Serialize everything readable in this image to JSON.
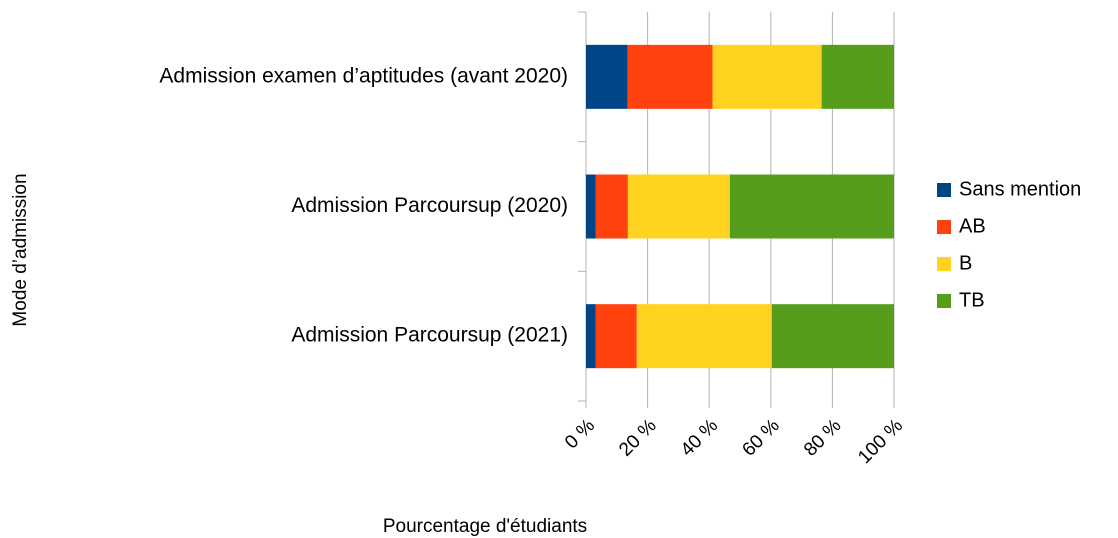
{
  "chart_data": {
    "type": "stacked-barh",
    "categories": [
      "Admission examen d’aptitudes (avant 2020)",
      "Admission Parcoursup (2020)",
      "Admission Parcoursup (2021)"
    ],
    "series": [
      {
        "name": "Sans mention",
        "color": "#004586",
        "values": [
          13.5,
          3.2,
          3.2
        ]
      },
      {
        "name": "AB",
        "color": "#ff420e",
        "values": [
          27.6,
          10.4,
          13.3
        ]
      },
      {
        "name": "B",
        "color": "#ffd320",
        "values": [
          35.4,
          33.1,
          43.8
        ]
      },
      {
        "name": "TB",
        "color": "#579d1c",
        "values": [
          23.5,
          53.3,
          39.7
        ]
      }
    ],
    "xlim": [
      0,
      100
    ],
    "xticks": [
      {
        "value": 0,
        "label": "0 %"
      },
      {
        "value": 20,
        "label": "20 %"
      },
      {
        "value": 40,
        "label": "40 %"
      },
      {
        "value": 60,
        "label": "60 %"
      },
      {
        "value": 80,
        "label": "80 %"
      },
      {
        "value": 100,
        "label": "100 %"
      }
    ],
    "xlabel": "Pourcentage d'étudiants",
    "ylabel": "Mode d’admission",
    "grid": true,
    "legend": "right"
  }
}
